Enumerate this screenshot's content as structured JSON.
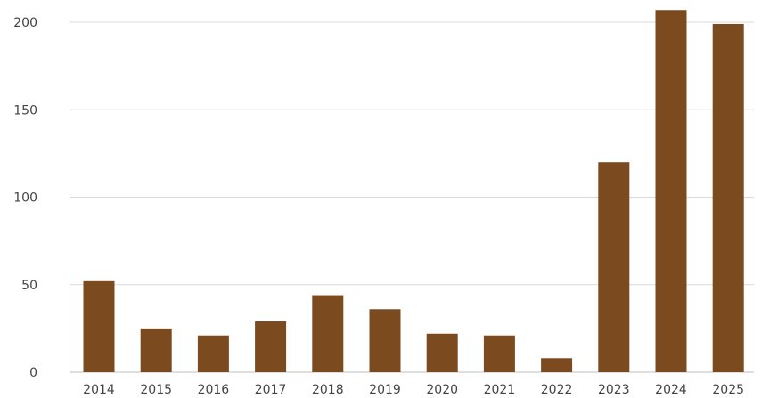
{
  "chart_data": {
    "type": "bar",
    "title": "",
    "xlabel": "",
    "ylabel": "",
    "categories": [
      "2014",
      "2015",
      "2016",
      "2017",
      "2018",
      "2019",
      "2020",
      "2021",
      "2022",
      "2023",
      "2024",
      "2025"
    ],
    "values": [
      52,
      25,
      21,
      29,
      44,
      36,
      22,
      21,
      8,
      120,
      207,
      199
    ],
    "ylim": [
      0,
      200
    ],
    "yticks": [
      0,
      50,
      100,
      150,
      200
    ],
    "ytick_labels": [
      "0",
      "50",
      "100",
      "150",
      "200"
    ],
    "grid": true,
    "legend": "none",
    "colors": {
      "bar": "#7b4a1f",
      "grid": "#d9d9d9",
      "text": "#444444"
    }
  }
}
